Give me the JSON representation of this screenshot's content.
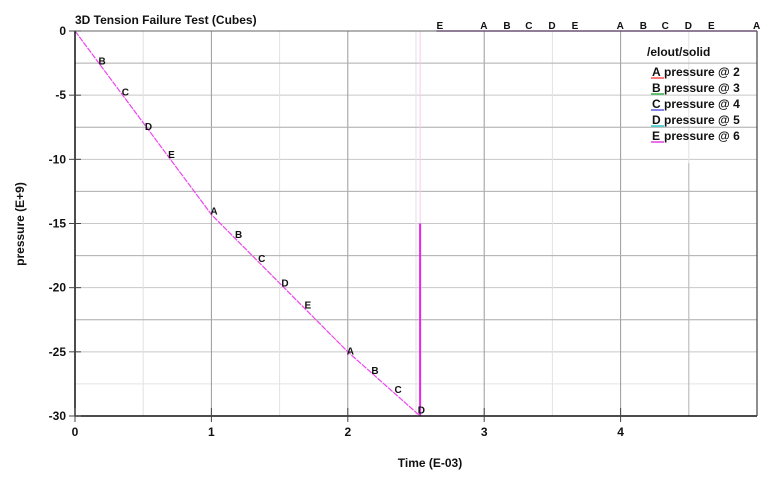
{
  "chart_data": {
    "type": "line",
    "title": "3D Tension Failure Test (Cubes)",
    "xlabel": "Time (E-03)",
    "ylabel": "pressure (E+9)",
    "xlim": [
      0,
      5
    ],
    "ylim": [
      -30,
      0
    ],
    "x_ticks": [
      "0",
      "1",
      "2",
      "3",
      "4"
    ],
    "y_ticks": [
      "0",
      "-5",
      "-10",
      "-15",
      "-20",
      "-25",
      "-30"
    ],
    "grid": true,
    "legend": {
      "title": "/elout/solid",
      "position": "upper right",
      "entries": [
        {
          "marker": "A",
          "label": "pressure @ 2",
          "color": "#ff4d4d"
        },
        {
          "marker": "B",
          "label": "pressure @ 3",
          "color": "#33b04a"
        },
        {
          "marker": "C",
          "label": "pressure @ 4",
          "color": "#5a5ae0"
        },
        {
          "marker": "D",
          "label": "pressure @ 5",
          "color": "#33c9c9"
        },
        {
          "marker": "E",
          "label": "pressure @ 6",
          "color": "#e040e0"
        }
      ]
    },
    "series": [
      {
        "name": "pressure @ 2",
        "marker": "A",
        "x": [
          0,
          1.0,
          2.0,
          2.53,
          2.55,
          3.0,
          4.0,
          5.0
        ],
        "y": [
          0,
          -14.3,
          -25.0,
          -30.0,
          0,
          0,
          0,
          0
        ]
      },
      {
        "name": "pressure @ 3",
        "marker": "B",
        "x": [
          0,
          0.17,
          1.17,
          2.17,
          2.53,
          2.55,
          3.17,
          4.17
        ],
        "y": [
          0,
          -2.5,
          -15.8,
          -26.4,
          -30.0,
          0,
          0,
          0
        ]
      },
      {
        "name": "pressure @ 4",
        "marker": "C",
        "x": [
          0,
          0.33,
          1.33,
          2.33,
          2.53,
          2.55,
          3.33,
          4.33
        ],
        "y": [
          0,
          -4.8,
          -17.7,
          -27.9,
          -30.0,
          0,
          0,
          0
        ]
      },
      {
        "name": "pressure @ 5",
        "marker": "D",
        "x": [
          0,
          0.5,
          1.5,
          2.5,
          2.53,
          2.55,
          3.5,
          4.5
        ],
        "y": [
          0,
          -7.6,
          -19.7,
          -29.8,
          -30.0,
          0,
          0,
          0
        ]
      },
      {
        "name": "pressure @ 6",
        "marker": "E",
        "x": [
          0,
          0.67,
          1.67,
          2.53,
          2.55,
          2.67,
          3.67,
          4.67
        ],
        "y": [
          0,
          -9.6,
          -21.3,
          -30.0,
          0,
          0,
          0,
          0
        ]
      }
    ],
    "annotations": [
      {
        "text": "A",
        "x": 1.0,
        "y": -14.0
      },
      {
        "text": "B",
        "x": 1.18,
        "y": -15.8
      },
      {
        "text": "C",
        "x": 1.35,
        "y": -17.7
      },
      {
        "text": "D",
        "x": 1.52,
        "y": -19.6
      },
      {
        "text": "E",
        "x": 1.69,
        "y": -21.3
      },
      {
        "text": "A",
        "x": 2.0,
        "y": -24.9
      },
      {
        "text": "B",
        "x": 2.18,
        "y": -26.4
      },
      {
        "text": "C",
        "x": 2.35,
        "y": -27.9
      },
      {
        "text": "D",
        "x": 2.52,
        "y": -29.5
      },
      {
        "text": "B",
        "x": 0.18,
        "y": -2.3
      },
      {
        "text": "C",
        "x": 0.35,
        "y": -4.7
      },
      {
        "text": "D",
        "x": 0.52,
        "y": -7.4
      },
      {
        "text": "E",
        "x": 0.69,
        "y": -9.6
      },
      {
        "text": "E",
        "x": 2.68,
        "y": 0
      },
      {
        "text": "A",
        "x": 3.0,
        "y": 0
      },
      {
        "text": "B",
        "x": 3.17,
        "y": 0
      },
      {
        "text": "C",
        "x": 3.33,
        "y": 0
      },
      {
        "text": "D",
        "x": 3.5,
        "y": 0
      },
      {
        "text": "E",
        "x": 3.67,
        "y": 0
      },
      {
        "text": "A",
        "x": 4.0,
        "y": 0
      },
      {
        "text": "B",
        "x": 4.17,
        "y": 0
      },
      {
        "text": "C",
        "x": 4.33,
        "y": 0
      },
      {
        "text": "D",
        "x": 4.5,
        "y": 0
      },
      {
        "text": "E",
        "x": 4.67,
        "y": 0
      },
      {
        "text": "A",
        "x": 5.0,
        "y": 0
      }
    ]
  },
  "colors": {
    "curve": "#ee44ee",
    "spike": "#ee22ee",
    "top_line": "#7a2a8a",
    "grid_major": "#9a9a9a",
    "grid_minor": "#dddddd",
    "axis": "#111111"
  }
}
